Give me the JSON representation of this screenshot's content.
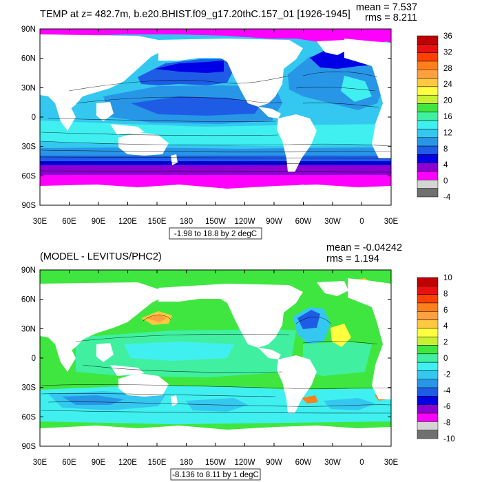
{
  "panels": [
    {
      "title": "TEMP at z= 482.7m, b.e20.BHIST.f09_g17.20thC.157_01 [1926-1945]",
      "mean_label": "mean = 7.537",
      "rms_label": "rms = 8.211",
      "range_label": "-1.98 to 18.8 by 2 degC",
      "colorbar_labels": [
        "36",
        "32",
        "28",
        "24",
        "20",
        "16",
        "12",
        "8",
        "4",
        "0",
        "-4"
      ]
    },
    {
      "title": "(MODEL - LEVITUS/PHC2)",
      "mean_label": "mean = -0.04242",
      "rms_label": "rms = 1.194",
      "range_label": "-8.136 to 8.11 by 1 degC",
      "colorbar_labels": [
        "10",
        "8",
        "6",
        "4",
        "2",
        "0",
        "-2",
        "-4",
        "-6",
        "-8",
        "-10"
      ]
    }
  ],
  "lat_labels": [
    "90N",
    "60N",
    "30N",
    "0",
    "30S",
    "60S",
    "90S"
  ],
  "lon_labels": [
    "30E",
    "60E",
    "90E",
    "120E",
    "150E",
    "180",
    "150W",
    "120W",
    "90W",
    "60W",
    "30W",
    "0",
    "30E"
  ],
  "colorbar_colors": [
    "#c00000",
    "#e81010",
    "#ff4000",
    "#ff7f1a",
    "#ffa040",
    "#ffc840",
    "#ffff40",
    "#c8f032",
    "#40e640",
    "#40f0a0",
    "#40f0f0",
    "#34c8f0",
    "#2896e6",
    "#1e5ce6",
    "#0000e6",
    "#8c00d2",
    "#ff00ff",
    "#d4d4d4",
    "#707070"
  ],
  "chart_data": [
    {
      "type": "heatmap",
      "title": "TEMP at z= 482.7m, b.e20.BHIST.f09_g17.20thC.157_01 [1926-1945]",
      "subtitle": "-1.98 to 18.8 by 2 degC",
      "mean": 7.537,
      "rms": 8.211,
      "contour_min": -1.98,
      "contour_max": 18.8,
      "contour_interval": 2,
      "units": "degC",
      "colorbar_levels": [
        -4,
        0,
        4,
        8,
        12,
        16,
        20,
        24,
        28,
        32,
        36
      ],
      "xlim": [
        "30E",
        "30E"
      ],
      "ylim": [
        "90S",
        "90N"
      ]
    },
    {
      "type": "heatmap",
      "title": "(MODEL - LEVITUS/PHC2)",
      "subtitle": "-8.136 to 8.11 by 1 degC",
      "mean": -0.04242,
      "rms": 1.194,
      "contour_min": -8.136,
      "contour_max": 8.11,
      "contour_interval": 1,
      "units": "degC",
      "colorbar_levels": [
        -10,
        -8,
        -6,
        -4,
        -2,
        0,
        2,
        4,
        6,
        8,
        10
      ],
      "xlim": [
        "30E",
        "30E"
      ],
      "ylim": [
        "90S",
        "90N"
      ]
    }
  ]
}
